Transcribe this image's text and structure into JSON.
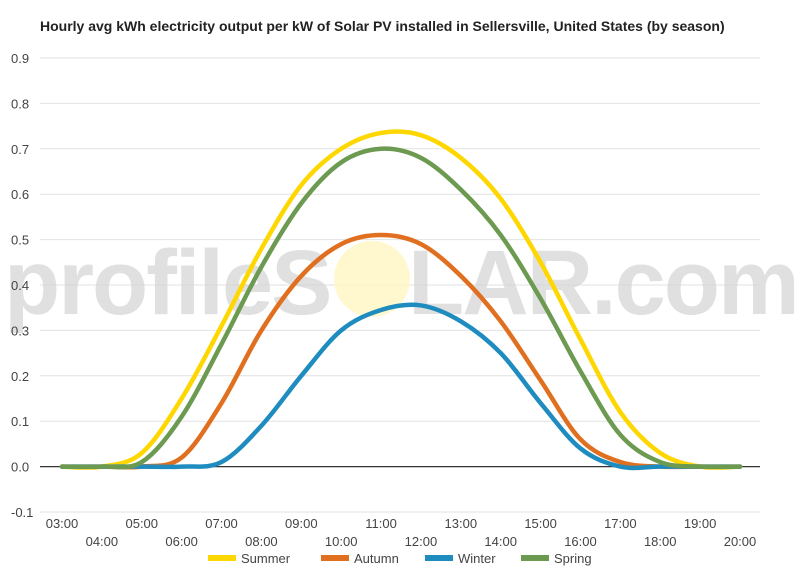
{
  "chart_data": {
    "type": "line",
    "title": "Hourly avg kWh electricity output per kW of Solar PV installed in Sellersville, United States (by season)",
    "xlabel": "",
    "ylabel": "",
    "ylim": [
      -0.1,
      0.9
    ],
    "yticks": [
      "-0.1",
      "0.0",
      "0.1",
      "0.2",
      "0.3",
      "0.4",
      "0.5",
      "0.6",
      "0.7",
      "0.8",
      "0.9"
    ],
    "x": [
      "03:00",
      "04:00",
      "05:00",
      "06:00",
      "07:00",
      "08:00",
      "09:00",
      "10:00",
      "11:00",
      "12:00",
      "13:00",
      "14:00",
      "15:00",
      "16:00",
      "17:00",
      "18:00",
      "19:00",
      "20:00"
    ],
    "grid": "horizontal",
    "legend": "bottom",
    "series": [
      {
        "name": "Summer",
        "color": "#FFD700",
        "values": [
          0.0,
          0.0,
          0.03,
          0.15,
          0.31,
          0.48,
          0.62,
          0.7,
          0.735,
          0.73,
          0.68,
          0.59,
          0.45,
          0.28,
          0.12,
          0.03,
          0.0,
          0.0
        ]
      },
      {
        "name": "Autumn",
        "color": "#E07020",
        "values": [
          0.0,
          0.0,
          0.0,
          0.02,
          0.14,
          0.3,
          0.42,
          0.49,
          0.51,
          0.49,
          0.42,
          0.32,
          0.19,
          0.06,
          0.01,
          0.0,
          0.0,
          0.0
        ]
      },
      {
        "name": "Winter",
        "color": "#1F8CC0",
        "values": [
          0.0,
          0.0,
          0.0,
          0.0,
          0.01,
          0.09,
          0.2,
          0.3,
          0.345,
          0.355,
          0.32,
          0.25,
          0.14,
          0.04,
          0.0,
          0.0,
          0.0,
          0.0
        ]
      },
      {
        "name": "Spring",
        "color": "#6B9A50",
        "values": [
          0.0,
          0.0,
          0.01,
          0.11,
          0.27,
          0.44,
          0.58,
          0.67,
          0.7,
          0.68,
          0.61,
          0.51,
          0.37,
          0.21,
          0.07,
          0.01,
          0.0,
          0.0
        ]
      }
    ]
  },
  "watermark": {
    "left": "profileS",
    "right": "LAR.com",
    "sun_color": "#FFF5C0"
  }
}
